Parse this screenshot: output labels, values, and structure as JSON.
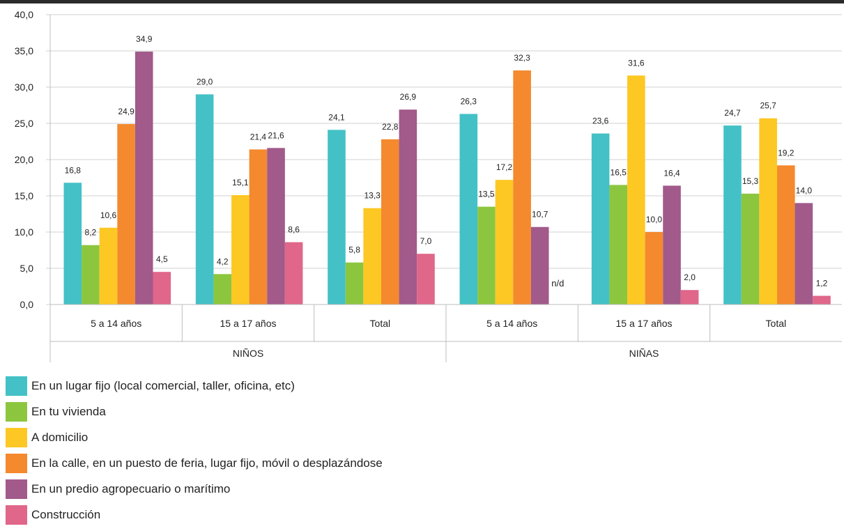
{
  "chart_data": {
    "type": "bar",
    "ylim": [
      0,
      40
    ],
    "y_ticks": [
      "0,0",
      "5,0",
      "10,0",
      "15,0",
      "20,0",
      "25,0",
      "30,0",
      "35,0",
      "40,0"
    ],
    "grid": true,
    "groups": [
      {
        "label": "NIÑOS",
        "categories": [
          "5 a 14 años",
          "15 a 17 años",
          "Total"
        ]
      },
      {
        "label": "NIÑAS",
        "categories": [
          "5 a 14 años",
          "15 a 17 años",
          "Total"
        ]
      }
    ],
    "legend_position": "bottom-left",
    "series": [
      {
        "name": "En un lugar fijo (local comercial, taller, oficina, etc)",
        "color": "#43c1c6",
        "values": [
          16.8,
          29.0,
          24.1,
          26.3,
          23.6,
          24.7
        ],
        "labels": [
          "16,8",
          "29,0",
          "24,1",
          "26,3",
          "23,6",
          "24,7"
        ]
      },
      {
        "name": "En tu vivienda",
        "color": "#8cc63f",
        "values": [
          8.2,
          4.2,
          5.8,
          13.5,
          16.5,
          15.3
        ],
        "labels": [
          "8,2",
          "4,2",
          "5,8",
          "13,5",
          "16,5",
          "15,3"
        ]
      },
      {
        "name": "A domicilio",
        "color": "#fdc824",
        "values": [
          10.6,
          15.1,
          13.3,
          17.2,
          31.6,
          25.7
        ],
        "labels": [
          "10,6",
          "15,1",
          "13,3",
          "17,2",
          "31,6",
          "25,7"
        ]
      },
      {
        "name": "En la calle, en un puesto de feria, lugar fijo, móvil o desplazándose",
        "color": "#f4892e",
        "values": [
          24.9,
          21.4,
          22.8,
          32.3,
          10.0,
          19.2
        ],
        "labels": [
          "24,9",
          "21,4",
          "22,8",
          "32,3",
          "10,0",
          "19,2"
        ]
      },
      {
        "name": "En un predio agropecuario o marítimo",
        "color": "#a15a8a",
        "values": [
          34.9,
          21.6,
          26.9,
          10.7,
          16.4,
          14.0
        ],
        "labels": [
          "34,9",
          "21,6",
          "26,9",
          "10,7",
          "16,4",
          "14,0"
        ]
      },
      {
        "name": "Construcción",
        "color": "#e0668a",
        "values": [
          4.5,
          8.6,
          7.0,
          null,
          2.0,
          1.2
        ],
        "labels": [
          "4,5",
          "8,6",
          "7,0",
          "n/d",
          "2,0",
          "1,2"
        ]
      }
    ]
  }
}
